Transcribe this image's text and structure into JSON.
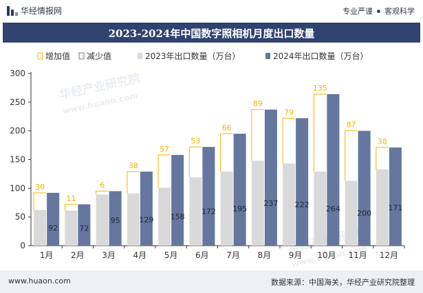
{
  "header": {
    "brand": "华经情报网",
    "slogan_1": "专业严谨",
    "slogan_2": "客观科学"
  },
  "title": "2023-2024年中国数字照相机月度出口数量",
  "legend": {
    "increase": "增加值",
    "decrease": "减少值",
    "series_2023": "2023年出口数量（万台）",
    "series_2024": "2024年出口数量（万台）"
  },
  "watermarks": [
    "华经产业研究院",
    "www.huaon.com",
    "华经产业研究院",
    "www.huaon.com"
  ],
  "footer": {
    "site": "www.huaon.com",
    "source": "数据来源：中国海关，华经产业研究院整理"
  },
  "colors": {
    "series_2023": "#d9d9d9",
    "series_2024": "#65779f",
    "increase": "#f5b300",
    "title_bar": "#2f4270"
  },
  "chart_data": {
    "type": "bar",
    "categories": [
      "1月",
      "2月",
      "3月",
      "4月",
      "5月",
      "6月",
      "7月",
      "8月",
      "9月",
      "10月",
      "11月",
      "12月"
    ],
    "series": [
      {
        "name": "2023年出口数量（万台）",
        "values": [
          62,
          61,
          89,
          91,
          101,
          119,
          129,
          148,
          143,
          129,
          113,
          133
        ]
      },
      {
        "name": "2024年出口数量（万台）",
        "values": [
          92,
          72,
          95,
          129,
          158,
          172,
          195,
          237,
          222,
          264,
          200,
          171
        ]
      }
    ],
    "increase": [
      30,
      11,
      6,
      38,
      57,
      53,
      66,
      89,
      79,
      135,
      87,
      38
    ],
    "ylim": [
      0,
      300
    ],
    "yticks": [
      0,
      50,
      100,
      150,
      200,
      250,
      300
    ],
    "grid": false,
    "legend_position": "top"
  }
}
